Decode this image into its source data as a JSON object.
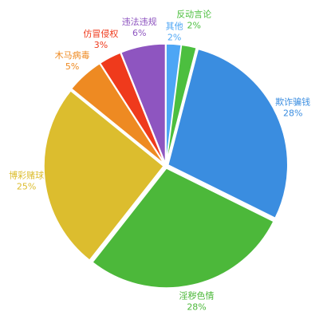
{
  "chart_data": {
    "type": "pie",
    "categories": [
      "其他",
      "反动言论",
      "欺诈骗钱",
      "淫秽色情",
      "博彩赌球",
      "木马病毒",
      "仿冒侵权",
      "违法违规"
    ],
    "values": [
      2,
      2,
      28,
      28,
      25,
      5,
      3,
      6
    ],
    "value_labels": [
      "2%",
      "2%",
      "28%",
      "28%",
      "25%",
      "5%",
      "3%",
      "6%"
    ],
    "colors": [
      "#4da6f5",
      "#4cbf3f",
      "#3a8de0",
      "#4cb83a",
      "#dcbd2e",
      "#ee8a22",
      "#ef3a1c",
      "#8e55c0"
    ]
  }
}
